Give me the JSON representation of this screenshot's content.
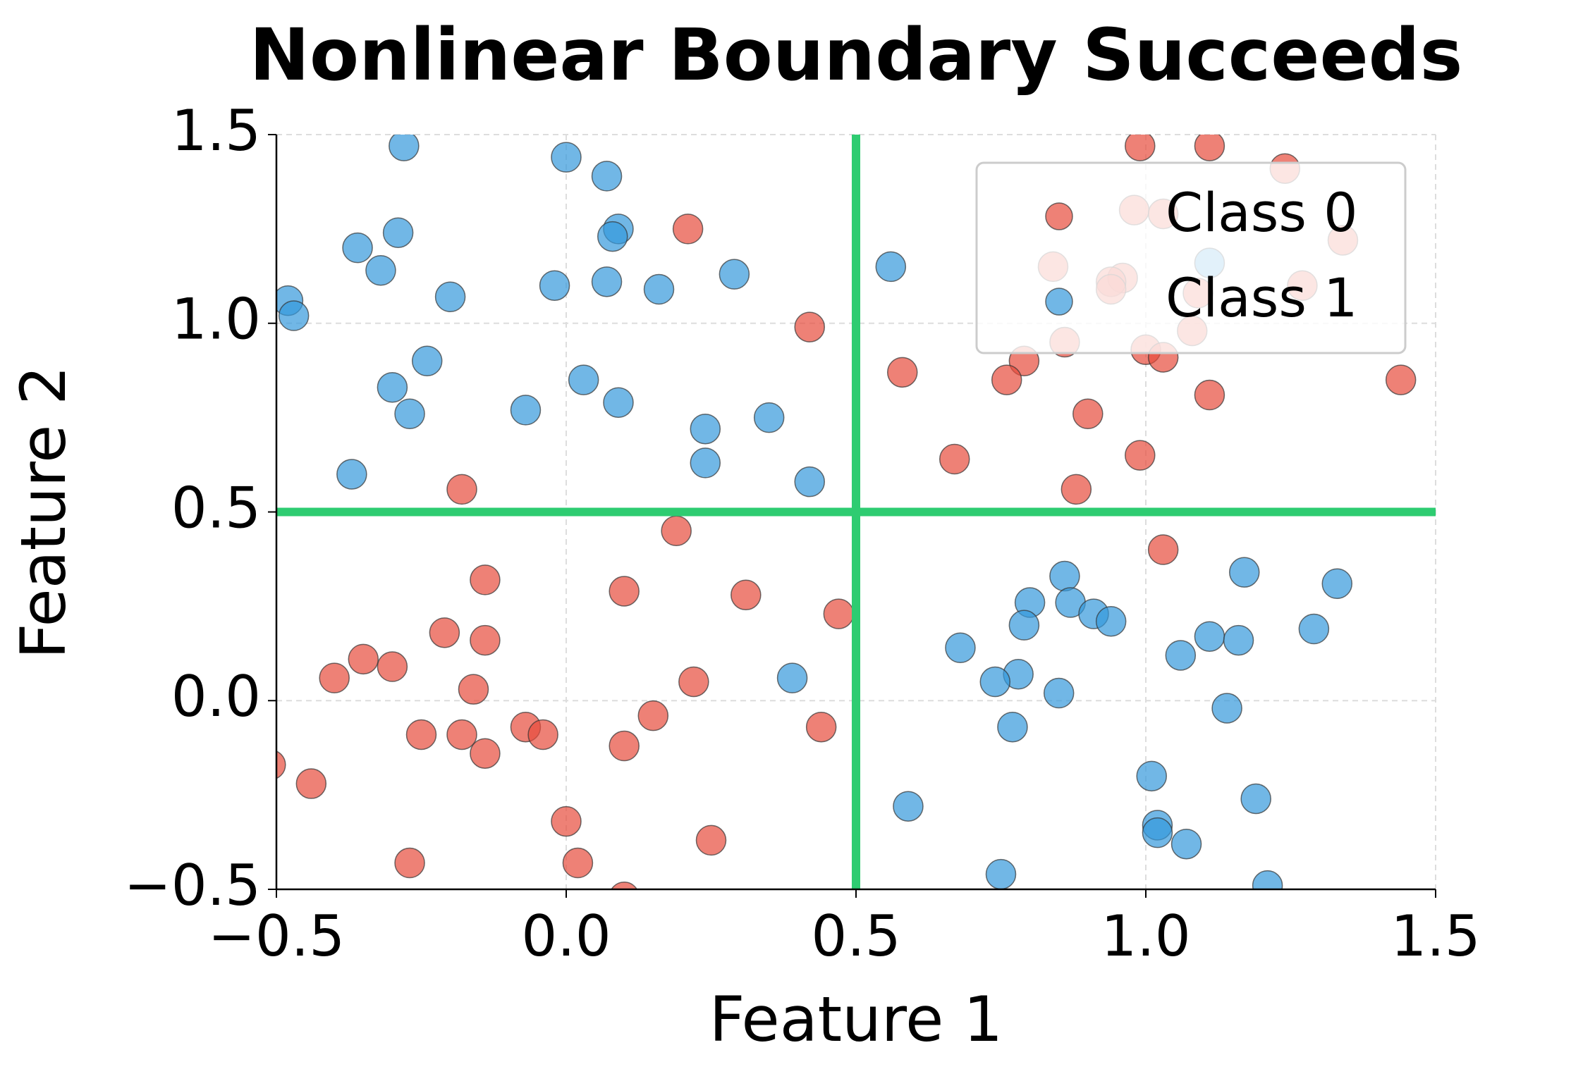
{
  "chart_data": {
    "type": "scatter",
    "title": "Nonlinear Boundary Succeeds",
    "x_label": "Feature 1",
    "y_label": "Feature 2",
    "xlim": [
      -0.5,
      1.5
    ],
    "ylim": [
      -0.5,
      1.5
    ],
    "xticks": [
      {
        "value": -0.5,
        "label": "−0.5"
      },
      {
        "value": 0,
        "label": "0.0"
      },
      0.5,
      {
        "value": 1,
        "label": "1.0"
      },
      1.5
    ],
    "yticks": [
      {
        "value": -0.5,
        "label": "−0.5"
      },
      {
        "value": 0,
        "label": "0.0"
      },
      0.5,
      {
        "value": 1,
        "label": "1.0"
      },
      1.5
    ],
    "grid": true,
    "legend": "upper right",
    "boundary": {
      "x": 0.5,
      "y": 0.5,
      "color": "#2ecc71"
    },
    "series": [
      {
        "name": "Class 0",
        "color": "#e74c3c",
        "x": [
          0.99,
          1.11,
          1.24,
          0.98,
          1.03,
          0.21,
          1.34,
          0.84,
          0.96,
          0.94,
          0.94,
          1.27,
          1.09,
          0.42,
          1.08,
          0.86,
          1.0,
          1.03,
          0.79,
          0.58,
          0.76,
          1.44,
          1.11,
          0.9,
          0.67,
          0.99,
          -0.18,
          0.88,
          0.19,
          1.03,
          -0.14,
          0.1,
          0.31,
          0.47,
          -0.21,
          -0.14,
          -0.35,
          -0.3,
          -0.4,
          -0.16,
          0.22,
          0.15,
          -0.07,
          0.44,
          -0.25,
          -0.18,
          -0.04,
          0.1,
          -0.14,
          -0.51,
          -0.44,
          0.0,
          0.25,
          -0.27,
          0.02,
          0.1
        ],
        "values": [
          1.47,
          1.47,
          1.41,
          1.3,
          1.29,
          1.25,
          1.22,
          1.15,
          1.12,
          1.11,
          1.09,
          1.1,
          1.08,
          0.99,
          0.98,
          0.95,
          0.93,
          0.91,
          0.9,
          0.87,
          0.85,
          0.85,
          0.81,
          0.76,
          0.64,
          0.65,
          0.56,
          0.56,
          0.45,
          0.4,
          0.32,
          0.29,
          0.28,
          0.23,
          0.18,
          0.16,
          0.11,
          0.09,
          0.06,
          0.03,
          0.05,
          -0.04,
          -0.07,
          -0.07,
          -0.09,
          -0.09,
          -0.09,
          -0.12,
          -0.14,
          -0.17,
          -0.22,
          -0.32,
          -0.37,
          -0.43,
          -0.43,
          -0.52
        ]
      },
      {
        "name": "Class 1",
        "color": "#3498db",
        "x": [
          -0.28,
          0.0,
          0.07,
          0.09,
          0.08,
          -0.36,
          -0.29,
          -0.32,
          0.29,
          0.07,
          -0.02,
          0.16,
          -0.2,
          -0.48,
          -0.47,
          0.56,
          1.11,
          -0.24,
          -0.3,
          -0.27,
          0.03,
          0.09,
          -0.07,
          0.35,
          0.24,
          0.24,
          -0.37,
          0.42,
          1.17,
          1.33,
          0.86,
          0.8,
          0.87,
          0.91,
          0.94,
          0.79,
          1.29,
          1.11,
          1.16,
          0.68,
          1.06,
          0.39,
          0.78,
          0.74,
          0.85,
          1.14,
          0.77,
          1.01,
          1.19,
          0.59,
          1.02,
          1.02,
          1.07,
          0.75,
          1.21
        ],
        "values": [
          1.47,
          1.44,
          1.39,
          1.25,
          1.23,
          1.2,
          1.24,
          1.14,
          1.13,
          1.11,
          1.1,
          1.09,
          1.07,
          1.06,
          1.02,
          1.15,
          1.16,
          0.9,
          0.83,
          0.76,
          0.85,
          0.79,
          0.77,
          0.75,
          0.72,
          0.63,
          0.6,
          0.58,
          0.34,
          0.31,
          0.33,
          0.26,
          0.26,
          0.23,
          0.21,
          0.2,
          0.19,
          0.17,
          0.16,
          0.14,
          0.12,
          0.06,
          0.07,
          0.05,
          0.02,
          -0.02,
          -0.07,
          -0.2,
          -0.26,
          -0.28,
          -0.33,
          -0.35,
          -0.38,
          -0.46,
          -0.49
        ]
      }
    ]
  }
}
